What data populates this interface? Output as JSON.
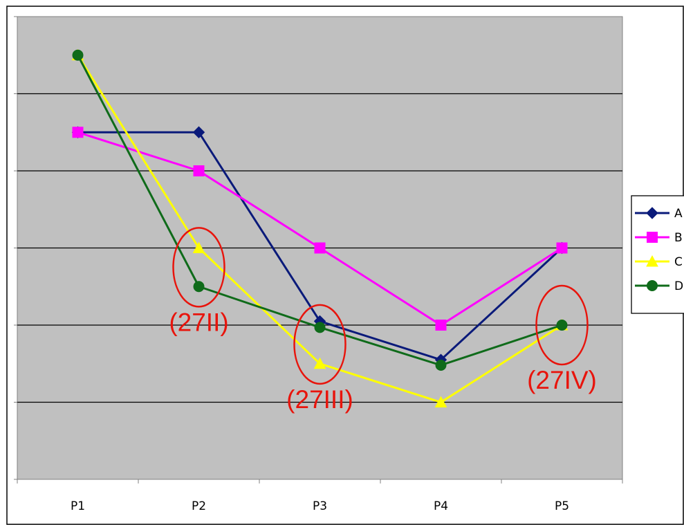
{
  "chart_data": {
    "type": "line",
    "categories": [
      "P1",
      "P2",
      "P3",
      "P4",
      "P5"
    ],
    "ylim": [
      0,
      6
    ],
    "grid": true,
    "legend": "right",
    "series": [
      {
        "name": "A",
        "color": "#0a1a7a",
        "marker": "diamond",
        "values": [
          4.5,
          4.5,
          2.05,
          1.55,
          3.0
        ]
      },
      {
        "name": "B",
        "color": "#ff00ff",
        "marker": "square",
        "values": [
          4.5,
          4.0,
          3.0,
          2.0,
          3.0
        ]
      },
      {
        "name": "C",
        "color": "#ffff00",
        "marker": "triangle",
        "values": [
          5.5,
          3.0,
          1.5,
          1.0,
          2.0
        ]
      },
      {
        "name": "D",
        "color": "#0f6b1a",
        "marker": "circle",
        "values": [
          5.5,
          2.5,
          1.97,
          1.48,
          2.0
        ]
      }
    ],
    "annotations": [
      {
        "label": "(27II)",
        "category": "P2",
        "value": 2.75
      },
      {
        "label": "(27III)",
        "category": "P3",
        "value": 1.75
      },
      {
        "label": "(27IV)",
        "category": "P5",
        "value": 2.0
      }
    ],
    "annotation_color": "#e8140c"
  }
}
